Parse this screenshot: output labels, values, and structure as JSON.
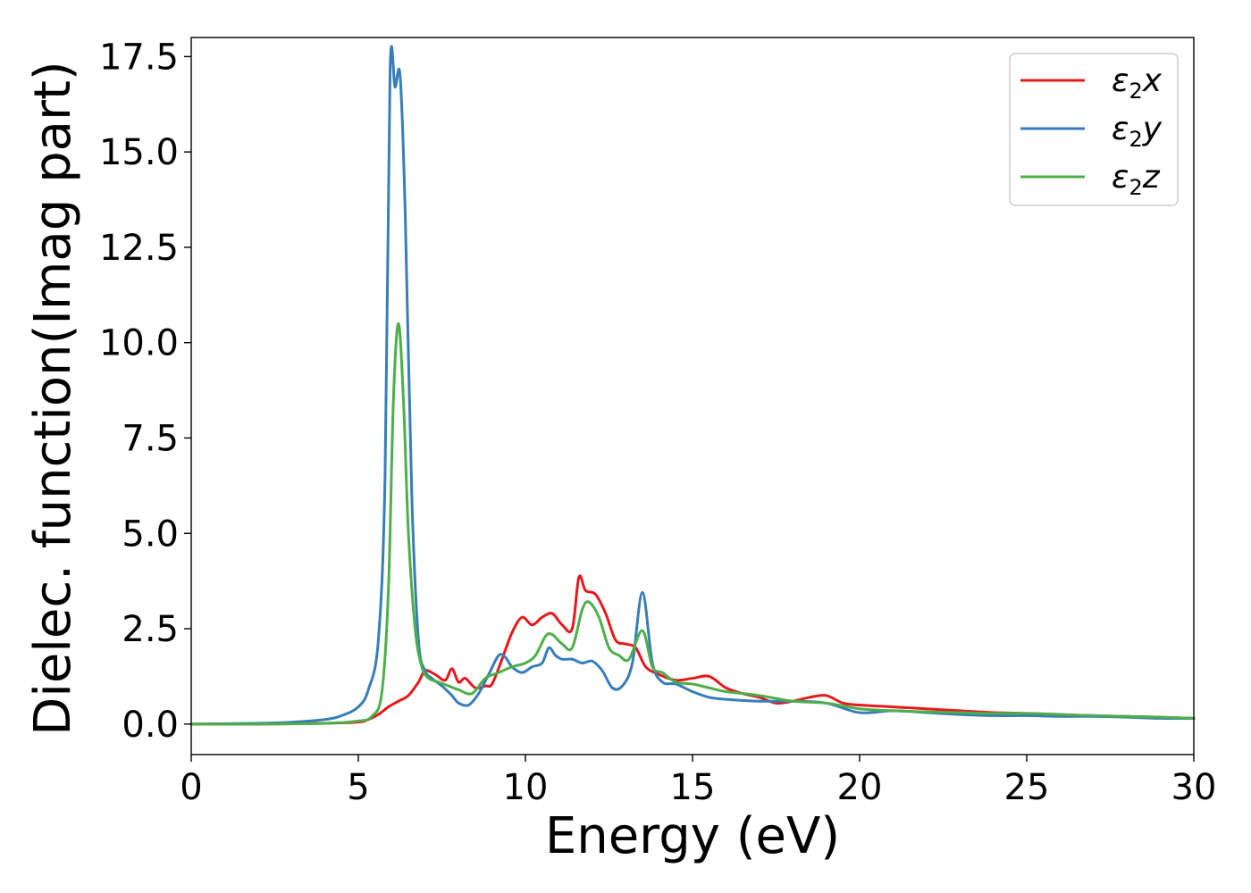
{
  "chart_data": {
    "type": "line",
    "xlabel": "Energy (eV)",
    "ylabel": "Dielec. function(Imag part)",
    "xlim": [
      0,
      30
    ],
    "ylim": [
      -0.8,
      18
    ],
    "xticks": [
      0,
      5,
      10,
      15,
      20,
      25,
      30
    ],
    "xtick_labels": [
      "0",
      "5",
      "10",
      "15",
      "20",
      "25",
      "30"
    ],
    "yticks": [
      0.0,
      2.5,
      5.0,
      7.5,
      10.0,
      12.5,
      15.0,
      17.5
    ],
    "ytick_labels": [
      "0.0",
      "2.5",
      "5.0",
      "7.5",
      "10.0",
      "12.5",
      "15.0",
      "17.5"
    ],
    "grid": false,
    "legend_position": "top-right",
    "series": [
      {
        "name": "ε₂x",
        "legend": {
          "symbol": "ε",
          "sub": "2",
          "axis": "x"
        },
        "color": "#e41a1c",
        "x": [
          0,
          2,
          4,
          5,
          5.3,
          5.6,
          5.9,
          6.2,
          6.5,
          6.8,
          7.0,
          7.3,
          7.6,
          7.8,
          8.0,
          8.2,
          8.5,
          8.8,
          9.0,
          9.3,
          9.6,
          9.9,
          10.2,
          10.5,
          10.8,
          11.1,
          11.4,
          11.6,
          11.8,
          12.1,
          12.4,
          12.7,
          13.0,
          13.3,
          13.6,
          14.0,
          14.5,
          15.0,
          15.5,
          16.0,
          16.5,
          17.0,
          17.5,
          18.0,
          18.5,
          19.0,
          19.5,
          20.0,
          21.0,
          22.0,
          23.0,
          24.0,
          25.0,
          26.0,
          27.0,
          28.0,
          29.0,
          30.0
        ],
        "y": [
          0.0,
          0.0,
          0.02,
          0.05,
          0.12,
          0.25,
          0.45,
          0.6,
          0.75,
          1.1,
          1.4,
          1.3,
          1.15,
          1.45,
          1.1,
          1.2,
          0.95,
          1.0,
          1.05,
          1.7,
          2.4,
          2.8,
          2.6,
          2.8,
          2.9,
          2.6,
          2.5,
          3.85,
          3.5,
          3.4,
          2.9,
          2.2,
          2.1,
          2.0,
          1.5,
          1.3,
          1.15,
          1.2,
          1.25,
          0.95,
          0.8,
          0.7,
          0.55,
          0.6,
          0.7,
          0.75,
          0.55,
          0.5,
          0.45,
          0.4,
          0.35,
          0.3,
          0.28,
          0.25,
          0.22,
          0.2,
          0.18,
          0.15
        ]
      },
      {
        "name": "ε₂y",
        "legend": {
          "symbol": "ε",
          "sub": "2",
          "axis": "y"
        },
        "color": "#377eb8",
        "x": [
          0,
          2,
          3,
          4,
          4.5,
          5.0,
          5.3,
          5.6,
          5.8,
          5.95,
          6.1,
          6.25,
          6.4,
          6.6,
          6.8,
          7.0,
          7.2,
          7.5,
          7.8,
          8.0,
          8.3,
          8.6,
          8.9,
          9.2,
          9.4,
          9.6,
          9.9,
          10.2,
          10.5,
          10.7,
          10.9,
          11.1,
          11.4,
          11.7,
          12.0,
          12.3,
          12.6,
          12.9,
          13.2,
          13.5,
          13.8,
          14.1,
          14.5,
          15.0,
          15.5,
          16.0,
          17.0,
          18.0,
          19.0,
          20.0,
          21.0,
          22.0,
          23.0,
          24.0,
          25.0,
          26.0,
          27.0,
          28.0,
          29.0,
          30.0
        ],
        "y": [
          0.0,
          0.02,
          0.05,
          0.12,
          0.22,
          0.45,
          0.9,
          2.2,
          6.5,
          17.1,
          16.7,
          17.0,
          13.5,
          6.0,
          2.2,
          1.4,
          1.2,
          1.0,
          0.75,
          0.55,
          0.5,
          0.8,
          1.3,
          1.8,
          1.75,
          1.5,
          1.35,
          1.5,
          1.6,
          2.0,
          1.8,
          1.7,
          1.7,
          1.6,
          1.65,
          1.4,
          0.95,
          1.0,
          1.6,
          3.45,
          1.6,
          1.1,
          1.05,
          0.85,
          0.7,
          0.65,
          0.6,
          0.6,
          0.55,
          0.3,
          0.35,
          0.3,
          0.25,
          0.22,
          0.22,
          0.2,
          0.2,
          0.18,
          0.15,
          0.15
        ]
      },
      {
        "name": "ε₂z",
        "legend": {
          "symbol": "ε",
          "sub": "2",
          "axis": "z"
        },
        "color": "#4daf4a",
        "x": [
          0,
          2,
          4,
          5.0,
          5.4,
          5.7,
          5.9,
          6.05,
          6.2,
          6.35,
          6.5,
          6.7,
          6.9,
          7.1,
          7.4,
          7.7,
          8.0,
          8.4,
          8.8,
          9.2,
          9.6,
          10.0,
          10.3,
          10.6,
          10.8,
          11.1,
          11.4,
          11.7,
          11.9,
          12.2,
          12.5,
          12.8,
          13.1,
          13.5,
          13.8,
          14.1,
          14.5,
          15.0,
          15.5,
          16.0,
          17.0,
          18.0,
          19.0,
          20.0,
          21.0,
          22.0,
          23.0,
          24.0,
          25.0,
          26.0,
          27.0,
          28.0,
          29.0,
          30.0
        ],
        "y": [
          0.0,
          0.0,
          0.02,
          0.08,
          0.2,
          0.8,
          3.5,
          8.5,
          10.5,
          8.5,
          5.0,
          2.5,
          1.5,
          1.2,
          1.1,
          1.0,
          0.9,
          0.8,
          1.2,
          1.35,
          1.5,
          1.6,
          1.8,
          2.3,
          2.35,
          2.1,
          2.0,
          3.0,
          3.2,
          2.8,
          2.0,
          1.8,
          1.7,
          2.45,
          1.5,
          1.35,
          1.1,
          1.05,
          0.95,
          0.85,
          0.75,
          0.6,
          0.55,
          0.4,
          0.35,
          0.32,
          0.3,
          0.28,
          0.28,
          0.25,
          0.22,
          0.2,
          0.18,
          0.15
        ]
      }
    ]
  }
}
